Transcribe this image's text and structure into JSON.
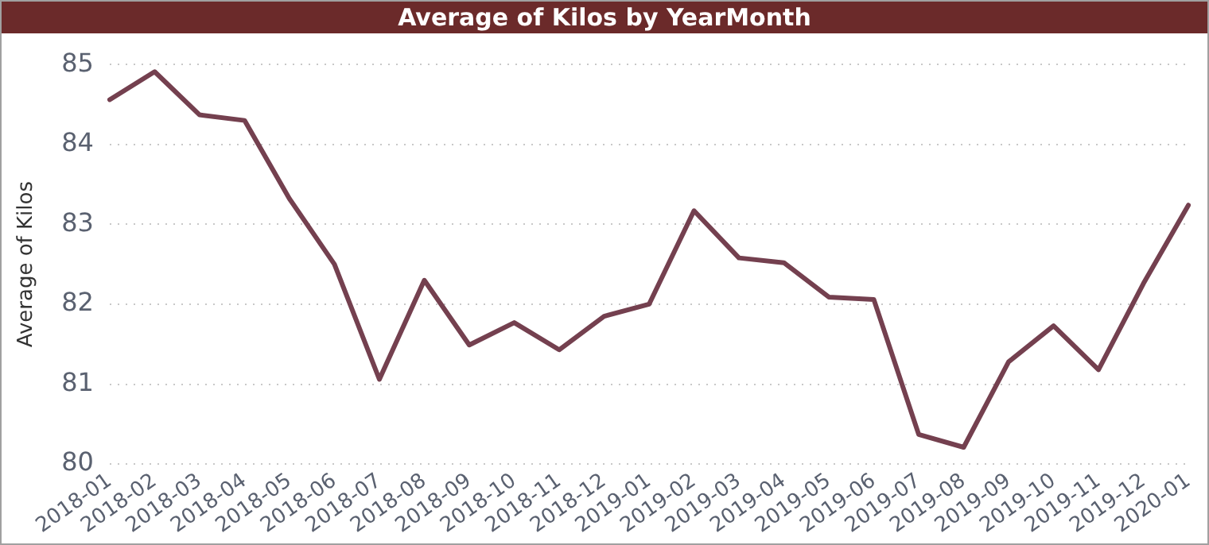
{
  "chart_data": {
    "type": "line",
    "title": "Average of Kilos by YearMonth",
    "ylabel": "Average of Kilos",
    "categories": [
      "2018-01",
      "2018-02",
      "2018-03",
      "2018-04",
      "2018-05",
      "2018-06",
      "2018-07",
      "2018-08",
      "2018-09",
      "2018-10",
      "2018-11",
      "2018-12",
      "2019-01",
      "2019-02",
      "2019-03",
      "2019-04",
      "2019-05",
      "2019-06",
      "2019-07",
      "2019-08",
      "2019-09",
      "2019-10",
      "2019-11",
      "2019-12",
      "2020-01"
    ],
    "series": [
      {
        "color": "#74404f",
        "values": [
          84.56,
          84.91,
          84.37,
          84.3,
          83.32,
          82.5,
          81.06,
          82.3,
          81.49,
          81.77,
          81.43,
          81.85,
          82.0,
          83.17,
          82.58,
          82.52,
          82.09,
          82.06,
          80.37,
          80.21,
          81.28,
          81.73,
          81.18,
          82.26,
          83.24
        ]
      }
    ],
    "ylim": [
      80,
      85
    ],
    "yticks": [
      80,
      81,
      82,
      83,
      84,
      85
    ],
    "grid": "y",
    "legend": false,
    "marker": "none",
    "line_style": "solid"
  }
}
